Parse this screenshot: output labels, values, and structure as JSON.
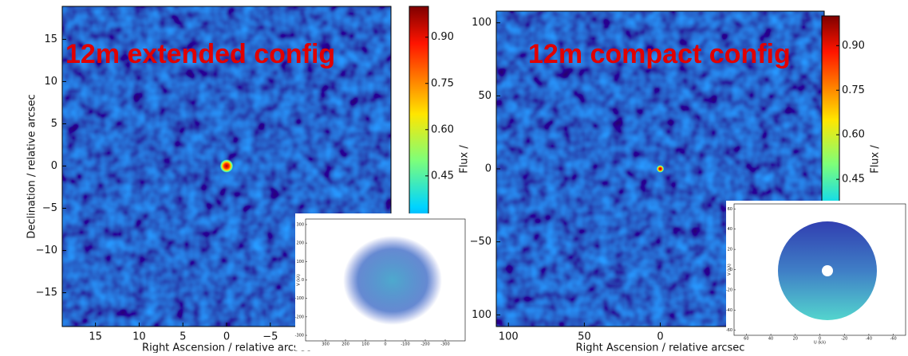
{
  "chart_data": [
    {
      "type": "image",
      "title": "12m extended config",
      "xlabel": "Right Ascension / relative arcsec",
      "ylabel": "Declination / relative arcsec",
      "xlim": [
        18.8,
        -18.8
      ],
      "ylim": [
        -19,
        18.9
      ],
      "xticks": [
        15,
        10,
        5,
        0,
        {
          "value": -5,
          "label": "−5"
        }
      ],
      "yticks": [
        {
          "value": -15,
          "label": "−15"
        },
        {
          "value": -10,
          "label": "−10"
        },
        {
          "value": -5,
          "label": "−5"
        },
        0,
        5,
        10,
        15
      ],
      "colorbar": {
        "label": "Flux /",
        "lim": [
          0,
          1.0
        ],
        "ticks": [
          {
            "value": 0.45,
            "label": "0.45"
          },
          {
            "value": 0.6,
            "label": "0.60"
          },
          {
            "value": 0.75,
            "label": "0.75"
          },
          {
            "value": 0.9,
            "label": "0.90"
          }
        ]
      },
      "inset": {
        "type": "scatter",
        "ylabel": "V (kλ)",
        "xlim": [
          400,
          -400
        ],
        "ylim": [
          -330,
          330
        ],
        "xticks": [
          300,
          200,
          100,
          0,
          -100,
          -200,
          -300
        ],
        "yticks": [
          300,
          200,
          100,
          0,
          -100,
          -200,
          -300
        ]
      }
    },
    {
      "type": "image",
      "title": "12m compact config",
      "xlabel": "Right Ascension / relative arcsec",
      "xlim": [
        108,
        -108
      ],
      "ylim": [
        -108,
        108
      ],
      "xticks": [
        100,
        50,
        0
      ],
      "yticks": [
        {
          "value": -100,
          "label": "−100"
        },
        {
          "value": -50,
          "label": "−50"
        },
        0,
        50,
        100
      ],
      "colorbar": {
        "label": "Flux /",
        "lim": [
          0,
          1.0
        ],
        "ticks": [
          {
            "value": 0.45,
            "label": "0.45"
          },
          {
            "value": 0.6,
            "label": "0.60"
          },
          {
            "value": 0.75,
            "label": "0.75"
          },
          {
            "value": 0.9,
            "label": "0.90"
          }
        ]
      },
      "inset": {
        "type": "scatter",
        "xlabel": "U (kλ)",
        "ylabel": "V (kλ)",
        "xlim": [
          70,
          -70
        ],
        "ylim": [
          -65,
          65
        ],
        "xticks": [
          60,
          40,
          20,
          0,
          -20,
          -40,
          -60
        ],
        "yticks": [
          60,
          40,
          20,
          0,
          -20,
          -40,
          -60
        ]
      }
    }
  ]
}
